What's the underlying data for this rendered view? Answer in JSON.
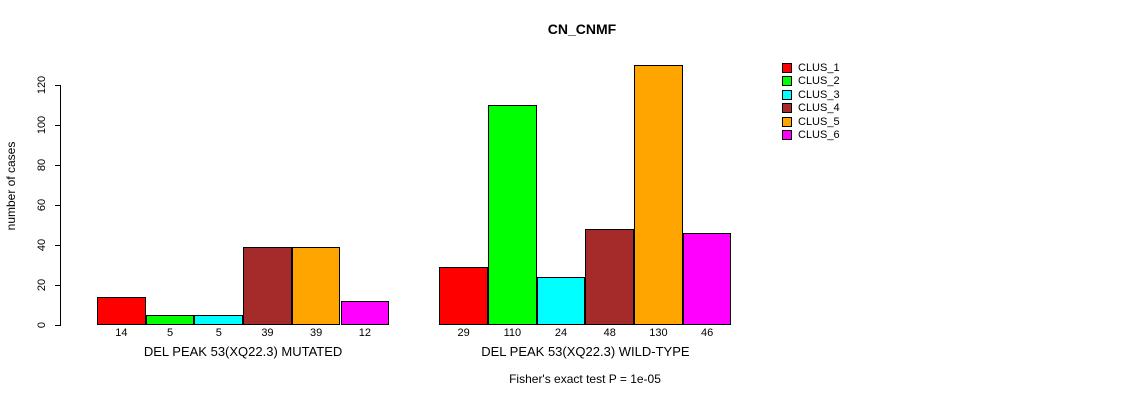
{
  "title": "CN_CNMF",
  "annotation": "Fisher's exact test P = 1e-05",
  "chart_data": {
    "type": "bar",
    "title": "CN_CNMF",
    "xlabel": "",
    "ylabel": "number of cases",
    "ylim": [
      0,
      130
    ],
    "yticks": [
      0,
      20,
      40,
      60,
      80,
      100,
      120
    ],
    "grid": false,
    "legend_position": "right",
    "categories": [
      "DEL PEAK 53(XQ22.3) MUTATED",
      "DEL PEAK 53(XQ22.3) WILD-TYPE"
    ],
    "series": [
      {
        "name": "CLUS_1",
        "color": "#FF0000",
        "values": [
          14,
          29
        ]
      },
      {
        "name": "CLUS_2",
        "color": "#00FF00",
        "values": [
          5,
          110
        ]
      },
      {
        "name": "CLUS_3",
        "color": "#00FFFF",
        "values": [
          5,
          24
        ]
      },
      {
        "name": "CLUS_4",
        "color": "#A52A2A",
        "values": [
          39,
          48
        ]
      },
      {
        "name": "CLUS_5",
        "color": "#FFA500",
        "values": [
          39,
          130
        ]
      },
      {
        "name": "CLUS_6",
        "color": "#FF00FF",
        "values": [
          12,
          46
        ]
      }
    ],
    "bar_value_labels": [
      [
        14,
        5,
        5,
        39,
        39,
        12
      ],
      [
        29,
        110,
        24,
        48,
        130,
        46
      ]
    ],
    "annotation": "Fisher's exact test P = 1e-05"
  }
}
